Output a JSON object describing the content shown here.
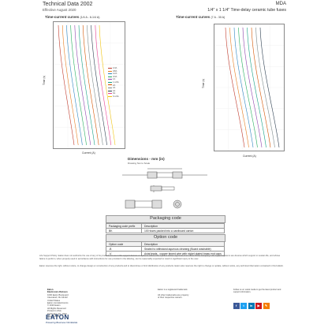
{
  "header": {
    "doc_title": "Technical Data 2002",
    "effective": "Effective August 2020",
    "series": "MDA",
    "product": "1/4\" x 1 1/4\" Time-delay ceramic tube fuses"
  },
  "charts": {
    "left_title": "Time-current curves",
    "left_range": "(1/4 A - 6-1/4 A)",
    "right_title": "Time-current curves",
    "right_range": "(7 A - 30 A)",
    "ylabel": "Time (s)",
    "xlabel": "Current (A)",
    "left_legend": [
      "1/4A",
      "3/8A",
      "1/2A",
      "3/4A",
      "1A",
      "1-1/2A",
      "2A",
      "3A",
      "4A",
      "5A",
      "6-1/4A"
    ],
    "colors": [
      "#c0392b",
      "#e67e22",
      "#2e86c1",
      "#27ae60",
      "#8e44ad",
      "#16a085",
      "#d35400",
      "#7f8c8d",
      "#2c3e50",
      "#e84393",
      "#f1c40f",
      "#1abc9c",
      "#9b59b6"
    ]
  },
  "dimensions": {
    "title": "Dimensions - mm (in)",
    "subtitle": "Drawing Not to Scale"
  },
  "packaging": {
    "title": "Packaging code",
    "headers": [
      "Packaging code prefix",
      "Description"
    ],
    "rows": [
      [
        "BK",
        "100 fuses packed into a cardboard carton"
      ]
    ]
  },
  "options": {
    "title": "Option code",
    "headers": [
      "Option code",
      "Description"
    ],
    "rows": [
      [
        "-B",
        "Sealed to withstand aqueous cleaning (Board washable)"
      ],
      [
        "-V",
        "Axial leads - copper tinned wire with nickel plated brass end caps"
      ]
    ]
  },
  "disclaimer": [
    "Life Support Policy: Eaton does not authorize the use of any of its products for use in life support devices or systems without the express written approval of an officer of the Company. Life support systems are devices which support or sustain life, and whose failure to perform, when properly used in accordance with instructions for use provided in the labeling, can be reasonably expected to result in significant injury to the user.",
    "Eaton reserves the right, without notice, to change design or construction of any products and to discontinue or limit distribution of any products. Eaton also reserves the right to change or update, without notice, any technical information contained in this bulletin."
  ],
  "footer": {
    "company": "Eaton",
    "division": "Electronics Division",
    "address": [
      "1000 Eaton Boulevard",
      "Cleveland, OH 44122",
      "United States",
      "Eaton.com/electronics"
    ],
    "copyright": [
      "© 2020 Eaton",
      "All Rights Reserved",
      "Printed in USA",
      "Publication No. 2002",
      "August 2020"
    ],
    "trademark": [
      "Eaton is a registered trademark.",
      "",
      "All other trademarks are property",
      "of their respective owners."
    ],
    "follow": "Follow us on social media to get the latest product and support information.",
    "logo": "EATON",
    "tagline": "Powering Business Worldwide",
    "social_icons": [
      "facebook-icon",
      "twitter-icon",
      "linkedin-icon",
      "youtube-icon",
      "blog-icon"
    ]
  }
}
